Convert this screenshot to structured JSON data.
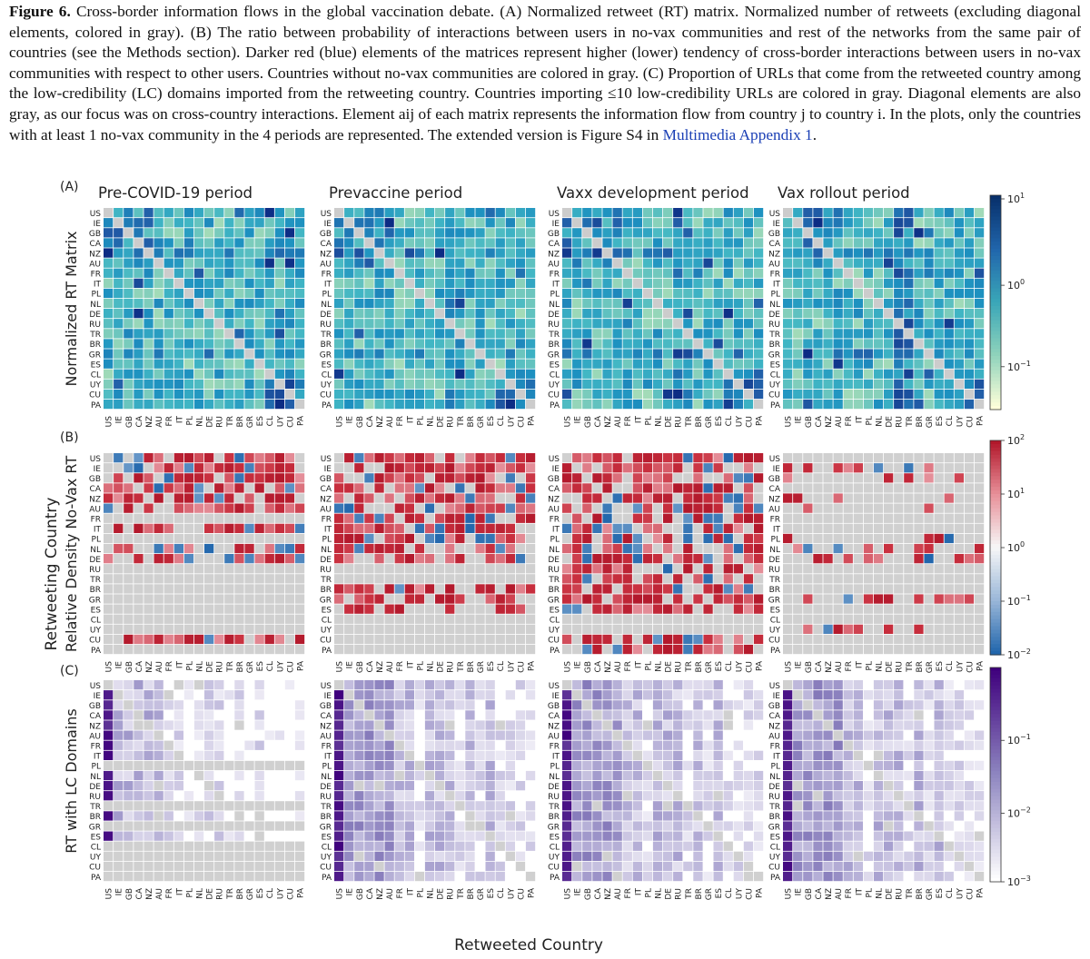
{
  "caption": {
    "label": "Figure 6.",
    "text": "Cross-border information flows in the global vaccination debate. (A) Normalized retweet (RT) matrix. Normalized number of retweets (excluding diagonal elements, colored in gray). (B) The ratio between probability of interactions between users in no-vax communities and rest of the networks from the same pair of countries (see the Methods section). Darker red (blue) elements of the matrices represent higher (lower) tendency of cross-border interactions between users in no-vax communities with respect to other users. Countries without no-vax communities are colored in gray. (C) Proportion of URLs that come from the retweeted country among the low-credibility (LC) domains imported from the retweeting country. Countries importing ≤10 low-credibility URLs are colored in gray. Diagonal elements are also gray, as our focus was on cross-country interactions. Element aij of each matrix represents the information flow from country j to country i. In the plots, only the countries with at least 1 no-vax community in the 4 periods are represented. The extended version is Figure S4 in",
    "link": "Multimedia Appendix 1",
    "end": "."
  },
  "figure": {
    "countries": [
      "US",
      "IE",
      "GB",
      "CA",
      "NZ",
      "AU",
      "FR",
      "IT",
      "PL",
      "NL",
      "DE",
      "RU",
      "TR",
      "BR",
      "GR",
      "ES",
      "CL",
      "UY",
      "CU",
      "PA"
    ],
    "periods": [
      "Pre-COVID-19 period",
      "Prevaccine period",
      "Vaxx development period",
      "Vax rollout period"
    ],
    "panel_labels": [
      "(A)",
      "(B)",
      "(C)"
    ],
    "row_labels": [
      "Normalized RT Matrix",
      "Relative Density No-Vax RT",
      "RT with LC Domains"
    ],
    "ylabel": "Retweeting Country",
    "xlabel": "Retweeted Country",
    "colorbars": [
      {
        "ticks": [
          "10^1",
          "10^0",
          "10^-1"
        ],
        "colors": [
          "#08306b",
          "#2166ac",
          "#3aa7b8",
          "#8fd3bb",
          "#ffffd9"
        ]
      },
      {
        "ticks": [
          "10^2",
          "10^1",
          "10^0",
          "10^-1",
          "10^-2"
        ],
        "colors": [
          "#b2182b",
          "#e8919a",
          "#f7f7f7",
          "#9ab7d8",
          "#2166ac"
        ]
      },
      {
        "ticks": [
          "10^-1",
          "10^-2",
          "10^-3"
        ],
        "colors": [
          "#3f007d",
          "#8e86c0",
          "#ffffff"
        ]
      }
    ]
  }
}
